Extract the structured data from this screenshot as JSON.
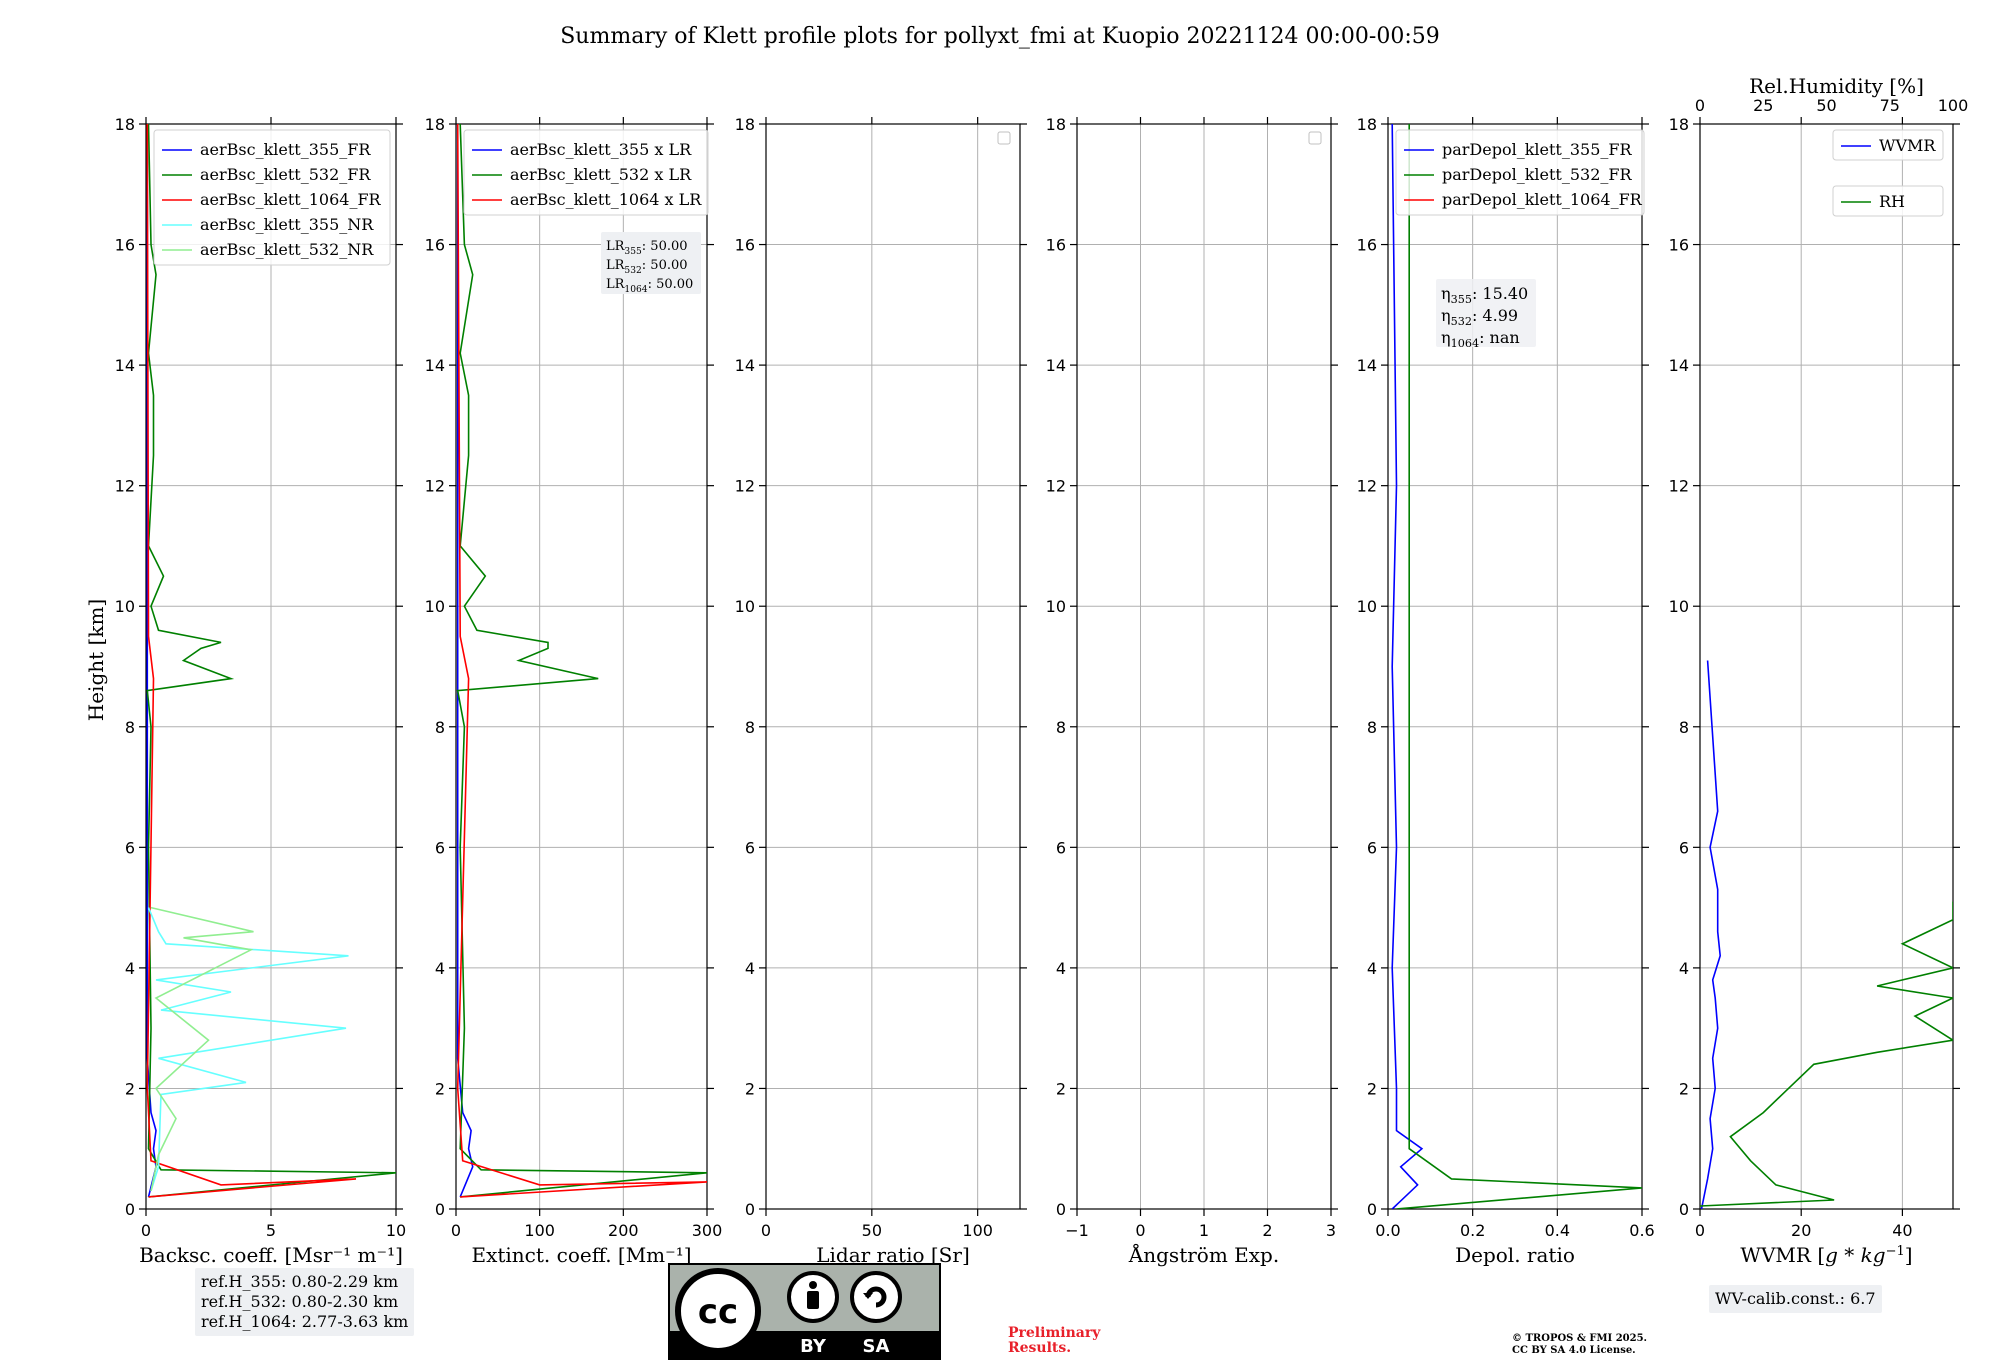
{
  "title": "Summary of Klett profile plots for pollyxt_fmi at Kuopio 20221124 00:00-00:59",
  "height_axis_label": "Height [km]",
  "height_ticks": [
    "0",
    "2",
    "4",
    "6",
    "8",
    "10",
    "12",
    "14",
    "16",
    "18"
  ],
  "colors": {
    "c355": "#0000ff",
    "c532": "#008000",
    "c1064": "#ff0000",
    "c355nr": "#66ffff",
    "c532nr": "#90ee90"
  },
  "chart_data": [
    {
      "type": "line",
      "name": "backscatter",
      "xlabel": "Backsc. coeff. [Msr⁻¹ m⁻¹]",
      "ylabel": "Height [km]",
      "xlim": [
        0,
        10
      ],
      "ylim": [
        0,
        18
      ],
      "xticks": [
        0,
        5,
        10
      ],
      "legend": [
        "aerBsc_klett_355_FR",
        "aerBsc_klett_532_FR",
        "aerBsc_klett_1064_FR",
        "aerBsc_klett_355_NR",
        "aerBsc_klett_532_NR"
      ],
      "series": [
        {
          "name": "aerBsc_klett_355_FR",
          "color": "c355",
          "points": [
            [
              0.1,
              0.2
            ],
            [
              0.4,
              0.7
            ],
            [
              0.3,
              1.0
            ],
            [
              0.4,
              1.3
            ],
            [
              0.2,
              1.6
            ],
            [
              0.05,
              2.5
            ],
            [
              0.05,
              18
            ]
          ]
        },
        {
          "name": "aerBsc_klett_532_FR",
          "color": "c532",
          "points": [
            [
              0.1,
              0.2
            ],
            [
              10,
              0.6
            ],
            [
              0.6,
              0.65
            ],
            [
              0.1,
              1.0
            ],
            [
              0.2,
              3
            ],
            [
              0.1,
              6
            ],
            [
              0.2,
              8
            ],
            [
              0.05,
              8.6
            ],
            [
              3.4,
              8.8
            ],
            [
              1.5,
              9.1
            ],
            [
              2.2,
              9.3
            ],
            [
              3.0,
              9.4
            ],
            [
              0.5,
              9.6
            ],
            [
              0.2,
              10
            ],
            [
              0.7,
              10.5
            ],
            [
              0.1,
              11
            ],
            [
              0.3,
              12.5
            ],
            [
              0.3,
              13.5
            ],
            [
              0.1,
              14.2
            ],
            [
              0.4,
              15.5
            ],
            [
              0.2,
              16
            ],
            [
              0.1,
              18
            ]
          ]
        },
        {
          "name": "aerBsc_klett_1064_FR",
          "color": "c1064",
          "points": [
            [
              0.1,
              0.2
            ],
            [
              8.4,
              0.5
            ],
            [
              3.0,
              0.4
            ],
            [
              0.2,
              0.8
            ],
            [
              0.05,
              2
            ],
            [
              0.3,
              8.8
            ],
            [
              0.1,
              9.5
            ],
            [
              0.05,
              18
            ]
          ]
        },
        {
          "name": "aerBsc_klett_355_NR",
          "color": "c355nr",
          "points": [
            [
              0.2,
              0.3
            ],
            [
              0.5,
              0.7
            ],
            [
              0.6,
              1.9
            ],
            [
              4.0,
              2.1
            ],
            [
              0.5,
              2.5
            ],
            [
              8.0,
              3.0
            ],
            [
              0.6,
              3.3
            ],
            [
              3.4,
              3.6
            ],
            [
              0.4,
              3.8
            ],
            [
              8.1,
              4.2
            ],
            [
              0.8,
              4.4
            ],
            [
              0.5,
              4.6
            ],
            [
              0.1,
              5.0
            ]
          ]
        },
        {
          "name": "aerBsc_klett_532_NR",
          "color": "c532nr",
          "points": [
            [
              0.2,
              0.3
            ],
            [
              0.5,
              0.9
            ],
            [
              1.2,
              1.5
            ],
            [
              0.4,
              2.0
            ],
            [
              2.5,
              2.8
            ],
            [
              0.4,
              3.5
            ],
            [
              4.2,
              4.3
            ],
            [
              1.5,
              4.5
            ],
            [
              4.3,
              4.6
            ],
            [
              0.2,
              5
            ]
          ]
        }
      ]
    },
    {
      "type": "line",
      "name": "extinction",
      "xlabel": "Extinct. coeff. [Mm⁻¹]",
      "ylabel": "Height [km]",
      "xlim": [
        0,
        300
      ],
      "ylim": [
        0,
        18
      ],
      "xticks": [
        0,
        100,
        200,
        300
      ],
      "legend": [
        "aerBsc_klett_355 x LR",
        "aerBsc_klett_532 x LR",
        "aerBsc_klett_1064 x LR"
      ],
      "lr_values": {
        "LR355": "50.00",
        "LR532": "50.00",
        "LR1064": "50.00"
      },
      "series": [
        {
          "name": "aerBsc_klett_355 x LR",
          "color": "c355",
          "points": [
            [
              5,
              0.2
            ],
            [
              20,
              0.7
            ],
            [
              15,
              1.0
            ],
            [
              18,
              1.3
            ],
            [
              8,
              1.6
            ],
            [
              2,
              2.5
            ],
            [
              2,
              18
            ]
          ]
        },
        {
          "name": "aerBsc_klett_532 x LR",
          "color": "c532",
          "points": [
            [
              5,
              0.2
            ],
            [
              300,
              0.6
            ],
            [
              30,
              0.65
            ],
            [
              5,
              1.0
            ],
            [
              10,
              3
            ],
            [
              5,
              6
            ],
            [
              10,
              8
            ],
            [
              2,
              8.6
            ],
            [
              170,
              8.8
            ],
            [
              75,
              9.1
            ],
            [
              110,
              9.3
            ],
            [
              110,
              9.4
            ],
            [
              25,
              9.6
            ],
            [
              10,
              10
            ],
            [
              35,
              10.5
            ],
            [
              5,
              11
            ],
            [
              15,
              12.5
            ],
            [
              15,
              13.5
            ],
            [
              5,
              14.2
            ],
            [
              20,
              15.5
            ],
            [
              10,
              16
            ],
            [
              5,
              18
            ]
          ]
        },
        {
          "name": "aerBsc_klett_1064 x LR",
          "color": "c1064",
          "points": [
            [
              5,
              0.2
            ],
            [
              300,
              0.45
            ],
            [
              100,
              0.4
            ],
            [
              8,
              0.8
            ],
            [
              2,
              2
            ],
            [
              15,
              8.8
            ],
            [
              5,
              9.5
            ],
            [
              2,
              18
            ]
          ]
        }
      ]
    },
    {
      "type": "line",
      "name": "lidar_ratio",
      "xlabel": "Lidar ratio [Sr]",
      "xlim": [
        0,
        120
      ],
      "ylim": [
        0,
        18
      ],
      "xticks": [
        0,
        50,
        100
      ],
      "series": []
    },
    {
      "type": "line",
      "name": "angstrom",
      "xlabel": "Ångström Exp.",
      "xlim": [
        -1,
        3
      ],
      "ylim": [
        0,
        18
      ],
      "xticks": [
        -1,
        0,
        1,
        2,
        3
      ],
      "series": []
    },
    {
      "type": "line",
      "name": "depol",
      "xlabel": "Depol. ratio",
      "xlim": [
        0,
        0.6
      ],
      "ylim": [
        0,
        18
      ],
      "xticks": [
        0.0,
        0.2,
        0.4,
        0.6
      ],
      "legend": [
        "parDepol_klett_355_FR",
        "parDepol_klett_532_FR",
        "parDepol_klett_1064_FR"
      ],
      "eta": {
        "eta355": "15.40",
        "eta532": "4.99",
        "eta1064": "nan"
      },
      "series": [
        {
          "name": "parDepol_klett_355_FR",
          "color": "c355",
          "points": [
            [
              0.01,
              0
            ],
            [
              0.07,
              0.4
            ],
            [
              0.03,
              0.7
            ],
            [
              0.08,
              1.0
            ],
            [
              0.02,
              1.3
            ],
            [
              0.02,
              2
            ],
            [
              0.01,
              4
            ],
            [
              0.02,
              6
            ],
            [
              0.01,
              9
            ],
            [
              0.02,
              12
            ],
            [
              0.01,
              18
            ]
          ]
        },
        {
          "name": "parDepol_klett_532_FR",
          "color": "c532",
          "points": [
            [
              0.02,
              0
            ],
            [
              0.6,
              0.35
            ],
            [
              0.15,
              0.5
            ],
            [
              0.05,
              1.0
            ],
            [
              0.05,
              18
            ]
          ]
        },
        {
          "name": "parDepol_klett_1064_FR",
          "color": "c1064",
          "points": []
        }
      ]
    },
    {
      "type": "line",
      "name": "water_vapour",
      "xlabel": "WVMR [g*kg⁻¹]",
      "x2label": "Rel.Humidity [%]",
      "xlim": [
        0,
        50
      ],
      "ylim": [
        0,
        18
      ],
      "xticks": [
        0,
        20,
        40
      ],
      "x2lim": [
        0,
        100
      ],
      "x2ticks": [
        0,
        25,
        50,
        75,
        100
      ],
      "legend": [
        "WVMR",
        "RH"
      ],
      "series": [
        {
          "name": "WVMR",
          "color": "c355",
          "points": [
            [
              0.3,
              0.0
            ],
            [
              1.5,
              0.5
            ],
            [
              2.5,
              1.0
            ],
            [
              2.0,
              1.5
            ],
            [
              3.0,
              2.0
            ],
            [
              2.5,
              2.5
            ],
            [
              3.5,
              3.0
            ],
            [
              3.0,
              3.5
            ],
            [
              2.5,
              3.8
            ],
            [
              4.0,
              4.2
            ],
            [
              3.5,
              4.6
            ],
            [
              3.5,
              5.3
            ],
            [
              2.0,
              6.0
            ],
            [
              3.5,
              6.6
            ],
            [
              1.5,
              9.1
            ]
          ]
        },
        {
          "name": "RH",
          "color": "c532",
          "points": [
            [
              0,
              0.05
            ],
            [
              53,
              0.15
            ],
            [
              30,
              0.4
            ],
            [
              20,
              0.8
            ],
            [
              12,
              1.2
            ],
            [
              25,
              1.6
            ],
            [
              35,
              2.0
            ],
            [
              45,
              2.4
            ],
            [
              70,
              2.6
            ],
            [
              100,
              2.8
            ],
            [
              85,
              3.2
            ],
            [
              100,
              3.5
            ],
            [
              70,
              3.7
            ],
            [
              100,
              4.0
            ],
            [
              80,
              4.4
            ],
            [
              100,
              4.8
            ],
            [
              100,
              5.1
            ]
          ]
        }
      ]
    }
  ],
  "ref_heights": {
    "ref355": "ref.H_355: 0.80-2.29 km",
    "ref532": "ref.H_532: 0.80-2.30 km",
    "ref1064": "ref.H_1064: 2.77-3.63 km"
  },
  "wv_calib": "WV-calib.const.: 6.7",
  "license_badge": {
    "cc": "cc",
    "by": "BY",
    "sa": "SA"
  },
  "preliminary": [
    "Preliminary",
    "Results."
  ],
  "copyright": [
    "© TROPOS & FMI 2025.",
    "CC BY SA 4.0 License."
  ]
}
